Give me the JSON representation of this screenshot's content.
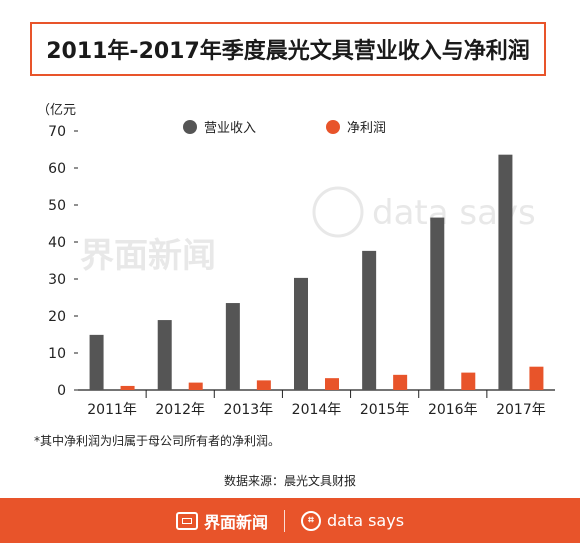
{
  "title": "2011年-2017年季度晨光文具营业收入与净利润",
  "footnote": "*其中净利润为归属于母公司所有者的净利润。",
  "source": "数据来源：晨光文具财报",
  "footer": {
    "brand_cn": "界面新闻",
    "brand_en": "data says"
  },
  "watermarks": {
    "cn": "界面新闻",
    "en": "data says"
  },
  "colors": {
    "accent": "#e8542a",
    "revenue": "#555555",
    "profit": "#e8542a"
  },
  "chart_data": {
    "type": "bar",
    "unit_label": "（亿元",
    "categories": [
      "2011年",
      "2012年",
      "2013年",
      "2014年",
      "2015年",
      "2016年",
      "2017年"
    ],
    "series": [
      {
        "name": "营业收入",
        "color": "#555555",
        "values": [
          14.9,
          18.9,
          23.5,
          30.3,
          37.6,
          46.6,
          63.6
        ]
      },
      {
        "name": "净利润",
        "color": "#e8542a",
        "values": [
          1.1,
          2.0,
          2.6,
          3.2,
          4.1,
          4.7,
          6.3
        ]
      }
    ],
    "ylim": [
      0,
      70
    ],
    "yticks": [
      0,
      10,
      20,
      30,
      40,
      50,
      60,
      70
    ],
    "legend": "top-center",
    "grid": false
  }
}
